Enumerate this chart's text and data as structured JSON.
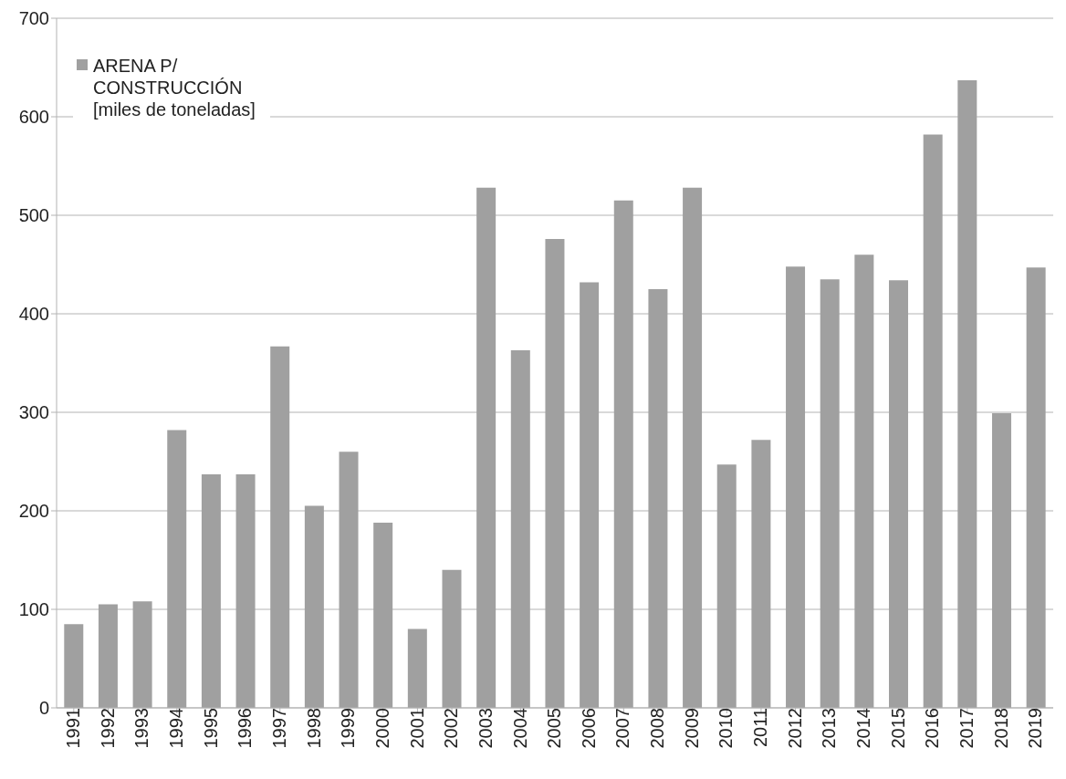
{
  "chart_data": {
    "type": "bar",
    "categories": [
      "1991",
      "1992",
      "1993",
      "1994",
      "1995",
      "1996",
      "1997",
      "1998",
      "1999",
      "2000",
      "2001",
      "2002",
      "2003",
      "2004",
      "2005",
      "2006",
      "2007",
      "2008",
      "2009",
      "2010",
      "2011",
      "2012",
      "2013",
      "2014",
      "2015",
      "2016",
      "2017",
      "2018",
      "2019"
    ],
    "series": [
      {
        "name": "ARENA P/ CONSTRUCCIÓN [miles de toneladas]",
        "color": "#a0a0a0",
        "values": [
          85,
          105,
          108,
          282,
          237,
          237,
          367,
          205,
          260,
          188,
          80,
          140,
          528,
          363,
          476,
          432,
          515,
          425,
          528,
          247,
          272,
          448,
          435,
          460,
          434,
          582,
          637,
          299,
          447
        ]
      }
    ],
    "ylim": [
      0,
      700
    ],
    "yticks": [
      0,
      100,
      200,
      300,
      400,
      500,
      600,
      700
    ],
    "grid": "y",
    "legend": "top left"
  }
}
